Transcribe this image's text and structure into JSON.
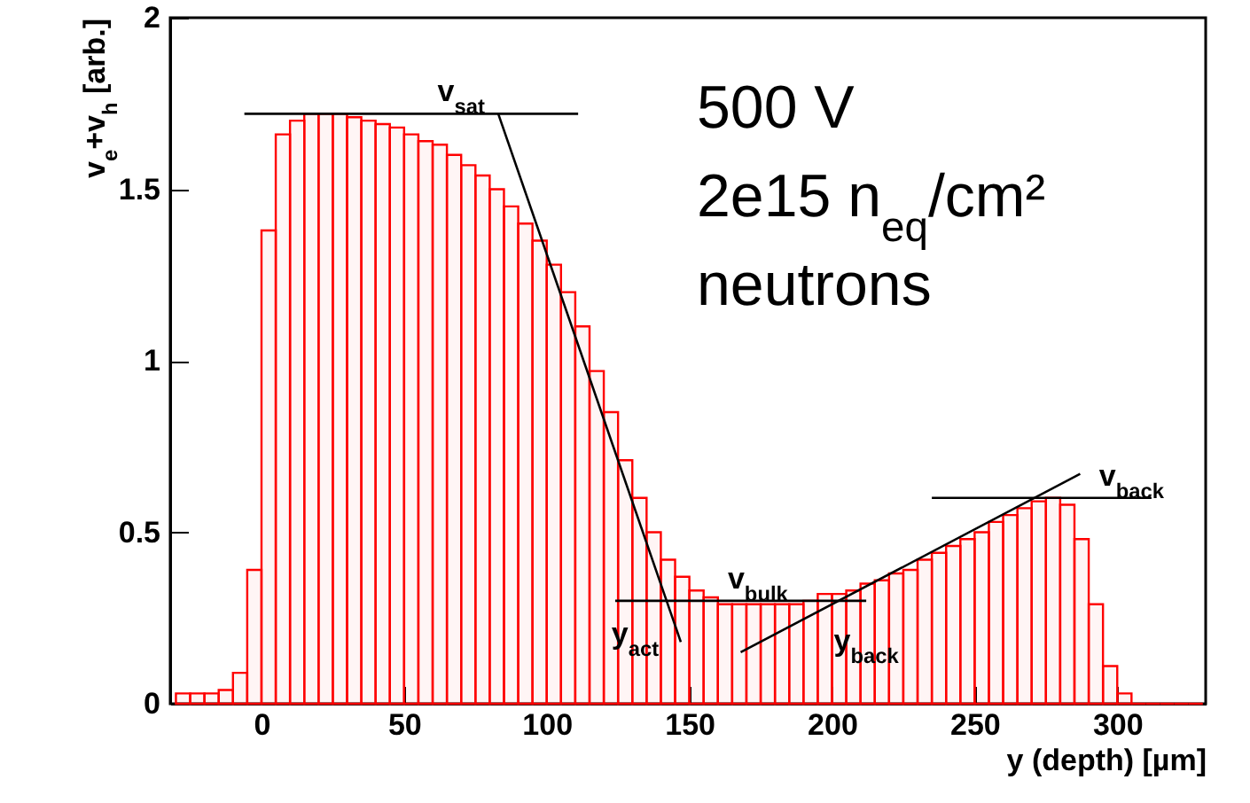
{
  "chart_data": {
    "type": "histogram",
    "xlabel": "y (depth) [µm]",
    "ylabel": "v$_{e}$+v$_{h}$ [arb.]",
    "color": "#ff0000",
    "bins": [
      -30,
      -25,
      -20,
      -15,
      -10,
      -5,
      0,
      5,
      10,
      15,
      20,
      25,
      30,
      35,
      40,
      45,
      50,
      55,
      60,
      65,
      70,
      75,
      80,
      85,
      90,
      95,
      100,
      105,
      110,
      115,
      120,
      125,
      130,
      135,
      140,
      145,
      150,
      155,
      160,
      165,
      170,
      175,
      180,
      185,
      190,
      195,
      200,
      205,
      210,
      215,
      220,
      225,
      230,
      235,
      240,
      245,
      250,
      255,
      260,
      265,
      270,
      275,
      280,
      285,
      290,
      295,
      300,
      305,
      310,
      315,
      320,
      325,
      330
    ],
    "values": [
      0.03,
      0.03,
      0.03,
      0.04,
      0.09,
      0.39,
      1.38,
      1.66,
      1.7,
      1.72,
      1.72,
      1.72,
      1.71,
      1.7,
      1.69,
      1.68,
      1.66,
      1.64,
      1.63,
      1.6,
      1.57,
      1.54,
      1.5,
      1.45,
      1.4,
      1.35,
      1.28,
      1.2,
      1.1,
      0.97,
      0.85,
      0.71,
      0.6,
      0.5,
      0.42,
      0.37,
      0.33,
      0.31,
      0.29,
      0.29,
      0.29,
      0.29,
      0.29,
      0.29,
      0.3,
      0.32,
      0.32,
      0.33,
      0.35,
      0.36,
      0.38,
      0.39,
      0.42,
      0.44,
      0.46,
      0.48,
      0.5,
      0.53,
      0.55,
      0.57,
      0.59,
      0.6,
      0.58,
      0.48,
      0.29,
      0.11,
      0.03,
      0,
      0,
      0,
      0,
      0
    ],
    "series": [
      {
        "type": "line",
        "color": "#000000",
        "x": [
          -6,
          111
        ],
        "values": [
          1.72,
          1.72
        ]
      },
      {
        "type": "line",
        "color": "#000000",
        "x": [
          83,
          147
        ],
        "values": [
          1.72,
          0.18
        ]
      },
      {
        "type": "line",
        "color": "#000000",
        "x": [
          124,
          212
        ],
        "values": [
          0.3,
          0.3
        ]
      },
      {
        "type": "line",
        "color": "#000000",
        "x": [
          168,
          287
        ],
        "values": [
          0.15,
          0.67
        ]
      },
      {
        "type": "line",
        "color": "#000000",
        "x": [
          235,
          312
        ],
        "values": [
          0.6,
          0.6
        ]
      }
    ],
    "xlim": [
      -32,
      331
    ],
    "ylim": [
      0,
      2
    ],
    "xticks": [
      0,
      50,
      100,
      150,
      200,
      250,
      300
    ],
    "yticks": [
      {
        "value": 0,
        "label": "0"
      },
      0.5,
      {
        "value": 1,
        "label": "1"
      },
      1.5,
      {
        "value": 2,
        "label": "2"
      }
    ],
    "annotations": [
      {
        "text": "v$_{sat}$",
        "x": 70,
        "y": 1.72
      },
      {
        "text": "y$_{act}$",
        "x": 131,
        "y": 0.14
      },
      {
        "text": "v$_{bulk}$",
        "x": 174,
        "y": 0.3
      },
      {
        "text": "y$_{back}$",
        "x": 212,
        "y": 0.12
      },
      {
        "text": "v$_{back}$",
        "x": 305,
        "y": 0.6
      },
      "500 V",
      "2e15 n$_{eq}$/cm²",
      "neutrons"
    ]
  }
}
